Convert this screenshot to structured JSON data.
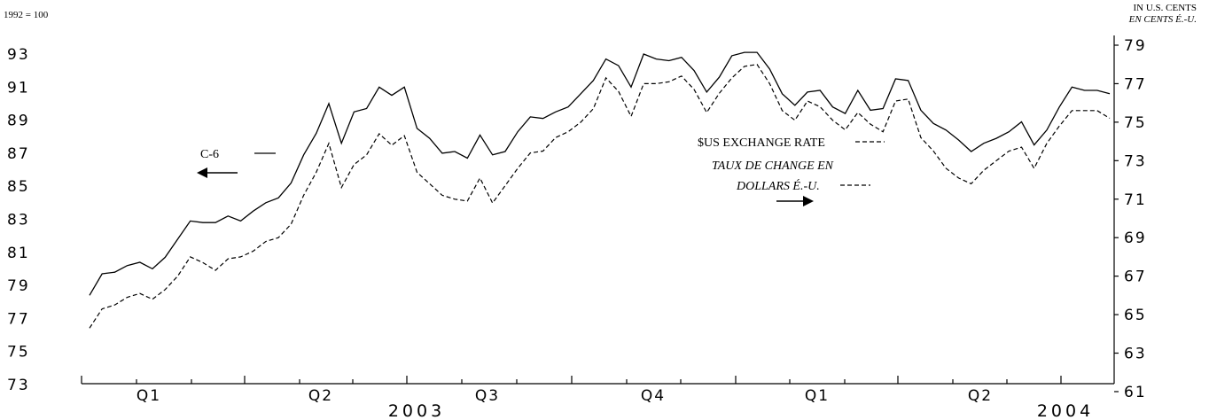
{
  "chart_data": {
    "type": "line",
    "left_unit": "1992 = 100",
    "right_unit_en": "IN U.S. CENTS",
    "right_unit_fr": "EN CENTS É.-U.",
    "left_ticks": [
      "93",
      "91",
      "89",
      "87",
      "85",
      "83",
      "81",
      "79",
      "77",
      "75",
      "73"
    ],
    "right_ticks": [
      "79",
      "77",
      "75",
      "73",
      "71",
      "69",
      "67",
      "65",
      "63",
      "61"
    ],
    "left_ylim": [
      73,
      94.5
    ],
    "right_ylim": [
      61,
      79.7
    ],
    "quarter_labels": [
      "Q1",
      "Q2",
      "Q3",
      "Q4",
      "Q1",
      "Q2"
    ],
    "year_labels": [
      "2003",
      "2004"
    ],
    "series": [
      {
        "name": "C-6",
        "axis": "left",
        "values": [
          78.4,
          79.7,
          79.8,
          80.2,
          80.4,
          80.0,
          80.7,
          81.8,
          82.9,
          82.8,
          82.8,
          83.2,
          82.9,
          83.5,
          84.0,
          84.3,
          85.2,
          86.9,
          88.2,
          90.0,
          87.6,
          89.5,
          89.7,
          91.0,
          90.5,
          91.0,
          88.5,
          87.9,
          87.0,
          87.1,
          86.7,
          88.1,
          86.9,
          87.1,
          88.3,
          89.2,
          89.1,
          89.5,
          89.8,
          90.6,
          91.4,
          92.7,
          92.3,
          91.0,
          93.0,
          92.7,
          92.6,
          92.8,
          92.0,
          90.7,
          91.6,
          92.9,
          93.1,
          93.1,
          92.1,
          90.6,
          89.9,
          90.7,
          90.8,
          89.8,
          89.4,
          90.8,
          89.6,
          89.7,
          91.5,
          91.4,
          89.6,
          88.8,
          88.4,
          87.8,
          87.1,
          87.6,
          87.9,
          88.3,
          88.9,
          87.5,
          88.4,
          89.8,
          91.0,
          90.8,
          90.8,
          90.6
        ]
      },
      {
        "name": "$US EXCHANGE RATE",
        "name_fr": "TAUX DE CHANGE EN DOLLARS É.-U.",
        "axis": "right",
        "values": [
          64.3,
          65.3,
          65.5,
          65.9,
          66.1,
          65.8,
          66.3,
          67.0,
          68.0,
          67.7,
          67.3,
          67.9,
          68.0,
          68.3,
          68.8,
          69.0,
          69.7,
          71.2,
          72.4,
          73.9,
          71.6,
          72.8,
          73.3,
          74.4,
          73.8,
          74.3,
          72.4,
          71.8,
          71.2,
          71.0,
          70.9,
          72.1,
          70.8,
          71.7,
          72.6,
          73.4,
          73.5,
          74.2,
          74.5,
          75.0,
          75.7,
          77.3,
          76.6,
          75.3,
          77.0,
          77.0,
          77.1,
          77.4,
          76.7,
          75.5,
          76.5,
          77.3,
          77.9,
          78.0,
          77.0,
          75.6,
          75.1,
          76.1,
          75.8,
          75.1,
          74.6,
          75.5,
          74.9,
          74.5,
          76.1,
          76.2,
          74.2,
          73.5,
          72.6,
          72.1,
          71.8,
          72.5,
          73.0,
          73.5,
          73.7,
          72.6,
          73.9,
          74.8,
          75.6,
          75.6,
          75.6,
          75.2
        ]
      }
    ],
    "annotations": {
      "c6_label": "C-6",
      "us_label": "$US EXCHANGE RATE",
      "fr_label_line1": "TAUX DE CHANGE EN",
      "fr_label_line2": "DOLLARS É.-U."
    },
    "grid": false
  }
}
